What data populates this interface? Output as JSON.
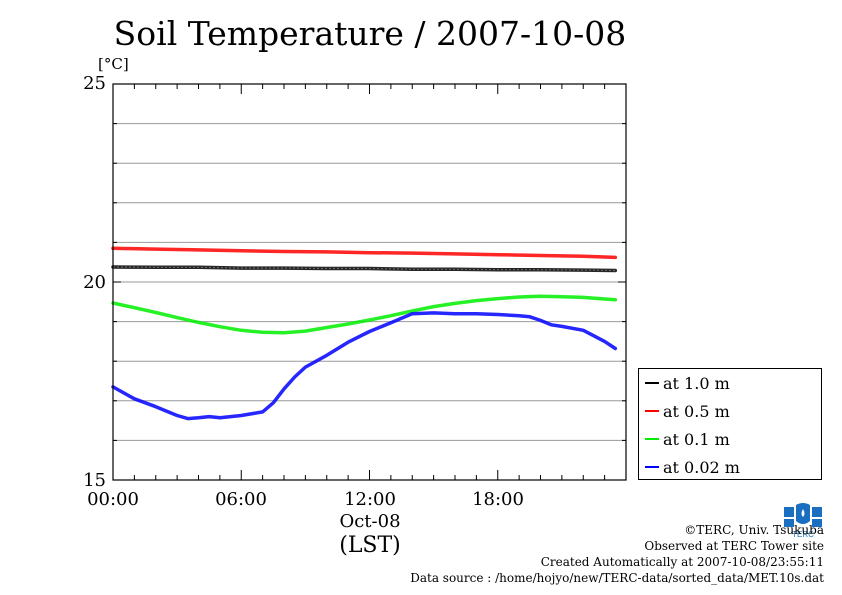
{
  "chart_data": {
    "type": "line",
    "title": "Soil Temperature / 2007-10-08",
    "ylabel": "[°C]",
    "ylim": [
      15,
      25
    ],
    "xlim": [
      0,
      24
    ],
    "yticks": [
      15,
      20,
      25
    ],
    "xticks": [
      {
        "value": 0,
        "label": "00:00"
      },
      {
        "value": 6,
        "label": "06:00"
      },
      {
        "value": 12,
        "label": "12:00"
      },
      {
        "value": 18,
        "label": "18:00"
      }
    ],
    "x_date_label": "Oct-08",
    "xlabel": "(LST)",
    "grid": "horizontal",
    "legend_position": "right-bottom",
    "series": [
      {
        "name": "at 1.0 m",
        "color": "#000000",
        "x": [
          0,
          2,
          4,
          6,
          8,
          10,
          12,
          14,
          16,
          18,
          20,
          22,
          23.5
        ],
        "values": [
          20.38,
          20.37,
          20.37,
          20.35,
          20.35,
          20.34,
          20.34,
          20.32,
          20.32,
          20.31,
          20.31,
          20.3,
          20.29
        ]
      },
      {
        "name": "at 0.5 m",
        "color": "#ff0000",
        "x": [
          0,
          2,
          4,
          6,
          8,
          10,
          12,
          14,
          16,
          18,
          20,
          22,
          23.5
        ],
        "values": [
          20.85,
          20.83,
          20.81,
          20.79,
          20.77,
          20.76,
          20.74,
          20.73,
          20.71,
          20.69,
          20.67,
          20.65,
          20.62
        ]
      },
      {
        "name": "at 0.1 m",
        "color": "#00ee00",
        "x": [
          0,
          1,
          2,
          3,
          4,
          5,
          6,
          7,
          8,
          9,
          10,
          11,
          12,
          13,
          14,
          15,
          16,
          17,
          18,
          19,
          20,
          21,
          22,
          23,
          23.5
        ],
        "values": [
          19.47,
          19.35,
          19.23,
          19.1,
          18.98,
          18.87,
          18.78,
          18.73,
          18.72,
          18.76,
          18.85,
          18.94,
          19.04,
          19.15,
          19.27,
          19.38,
          19.46,
          19.53,
          19.58,
          19.62,
          19.64,
          19.63,
          19.61,
          19.57,
          19.55
        ]
      },
      {
        "name": "at 0.02 m",
        "color": "#0000ff",
        "x": [
          0,
          0.5,
          1,
          2,
          3,
          3.5,
          4,
          4.5,
          5,
          6,
          7,
          7.5,
          8,
          8.5,
          9,
          10,
          11,
          12,
          13,
          14,
          15,
          16,
          17,
          18,
          19,
          19.5,
          20,
          20.5,
          21,
          22,
          23,
          23.5
        ],
        "values": [
          17.35,
          17.2,
          17.05,
          16.85,
          16.63,
          16.55,
          16.57,
          16.6,
          16.57,
          16.63,
          16.72,
          16.95,
          17.3,
          17.6,
          17.85,
          18.15,
          18.48,
          18.75,
          18.97,
          19.2,
          19.22,
          19.2,
          19.2,
          19.18,
          19.15,
          19.12,
          19.03,
          18.92,
          18.88,
          18.78,
          18.5,
          18.32
        ]
      }
    ]
  },
  "credits": {
    "copyright": "©TERC, Univ. Tsukuba",
    "observed": "Observed at TERC Tower site",
    "created": "Created Automatically at 2007-10-08/23:55:11",
    "source": "Data source : /home/hojyo/new/TERC-data/sorted_data/MET.10s.dat"
  },
  "logo": {
    "text": "TERC",
    "color": "#1a6fc0"
  }
}
